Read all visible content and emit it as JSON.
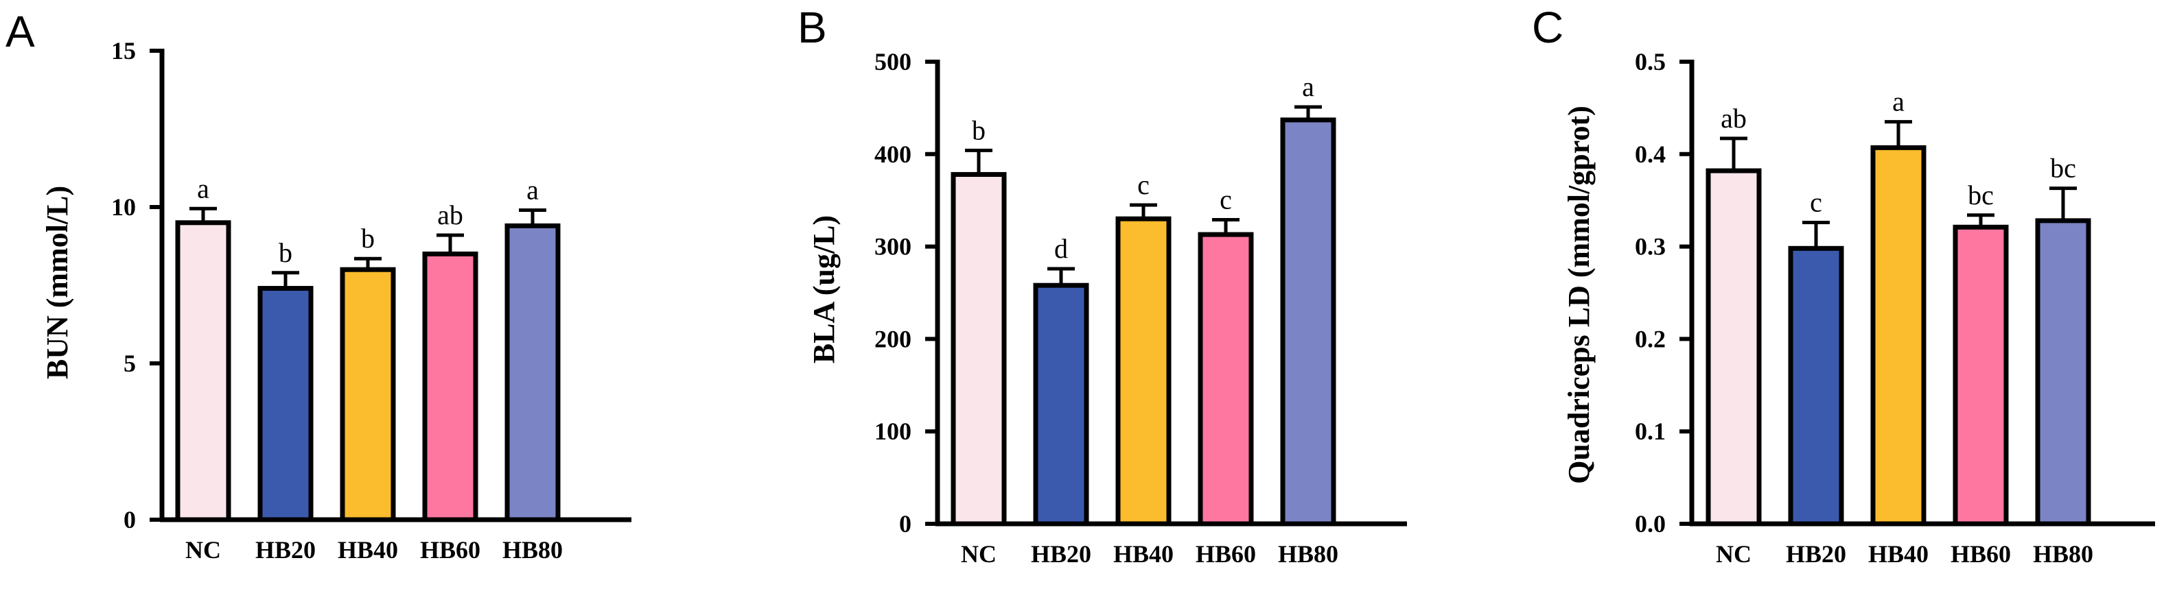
{
  "chart_data": [
    {
      "type": "bar",
      "panel": "A",
      "title": "",
      "xlabel": "",
      "ylabel": "BUN (mmol/L)",
      "ylim": [
        0,
        15
      ],
      "yticks": [
        0,
        5,
        10,
        15
      ],
      "ytick_labels": [
        "0",
        "5",
        "10",
        "15"
      ],
      "categories": [
        "NC",
        "HB20",
        "HB40",
        "HB60",
        "HB80"
      ],
      "values": [
        9.5,
        7.4,
        8.0,
        8.5,
        9.4
      ],
      "errors": [
        0.45,
        0.5,
        0.35,
        0.6,
        0.5
      ],
      "significance": [
        "a",
        "b",
        "b",
        "ab",
        "a"
      ],
      "colors": [
        "#fae6ea",
        "#3b5aae",
        "#fbbc2d",
        "#fd77a1",
        "#7b84c5"
      ]
    },
    {
      "type": "bar",
      "panel": "B",
      "title": "",
      "xlabel": "",
      "ylabel": "BLA (ug/L)",
      "ylim": [
        0,
        500
      ],
      "yticks": [
        0,
        100,
        200,
        300,
        400,
        500
      ],
      "ytick_labels": [
        "0",
        "100",
        "200",
        "300",
        "400",
        "500"
      ],
      "categories": [
        "NC",
        "HB20",
        "HB40",
        "HB60",
        "HB80"
      ],
      "values": [
        378,
        258,
        330,
        313,
        437
      ],
      "errors": [
        26,
        18,
        15,
        16,
        14
      ],
      "significance": [
        "b",
        "d",
        "c",
        "c",
        "a"
      ],
      "colors": [
        "#fae6ea",
        "#3b5aae",
        "#fbbc2d",
        "#fd77a1",
        "#7b84c5"
      ]
    },
    {
      "type": "bar",
      "panel": "C",
      "title": "",
      "xlabel": "",
      "ylabel": "Quadriceps LD (mmol/gprot)",
      "ylim": [
        0,
        0.5
      ],
      "yticks": [
        0,
        0.1,
        0.2,
        0.3,
        0.4,
        0.5
      ],
      "ytick_labels": [
        "0.0",
        "0.1",
        "0.2",
        "0.3",
        "0.4",
        "0.5"
      ],
      "categories": [
        "NC",
        "HB20",
        "HB40",
        "HB60",
        "HB80"
      ],
      "values": [
        0.382,
        0.298,
        0.407,
        0.321,
        0.328
      ],
      "errors": [
        0.035,
        0.028,
        0.028,
        0.013,
        0.035
      ],
      "significance": [
        "ab",
        "c",
        "a",
        "bc",
        "bc"
      ],
      "colors": [
        "#fae6ea",
        "#3b5aae",
        "#fbbc2d",
        "#fd77a1",
        "#7b84c5"
      ]
    }
  ]
}
